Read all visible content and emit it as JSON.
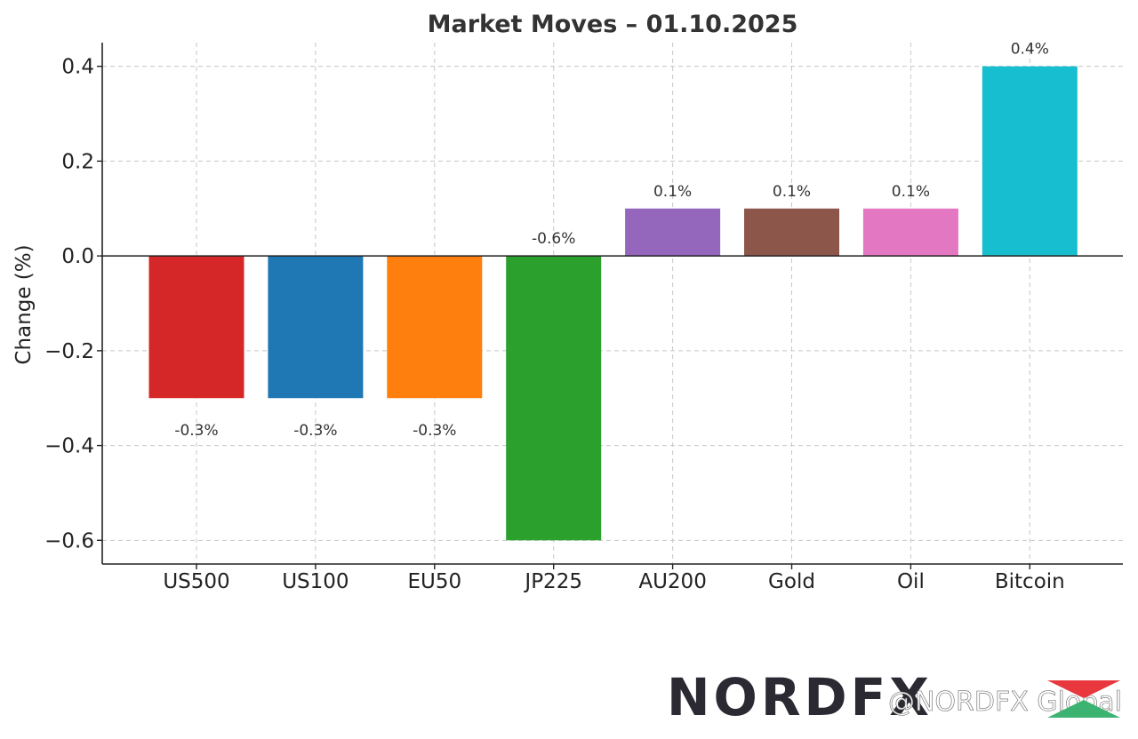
{
  "chart_data": {
    "type": "bar",
    "title": "Market Moves – 01.10.2025",
    "xlabel": "",
    "ylabel": "Change (%)",
    "categories": [
      "US500",
      "US100",
      "EU50",
      "JP225",
      "AU200",
      "Gold",
      "Oil",
      "Bitcoin"
    ],
    "values": [
      -0.3,
      -0.3,
      -0.3,
      -0.6,
      0.1,
      0.1,
      0.1,
      0.4
    ],
    "data_labels": [
      "-0.3%",
      "-0.3%",
      "-0.3%",
      "-0.6%",
      "0.1%",
      "0.1%",
      "0.1%",
      "0.4%"
    ],
    "colors": [
      "#d62728",
      "#1f77b4",
      "#ff7f0e",
      "#2ca02c",
      "#9467bd",
      "#8c564b",
      "#e377c2",
      "#17becf"
    ],
    "yticks": [
      -0.6,
      -0.4,
      -0.2,
      0.0,
      0.2,
      0.4
    ],
    "ytick_labels": [
      "−0.6",
      "−0.4",
      "−0.2",
      "0.0",
      "0.2",
      "0.4"
    ],
    "ylim": [
      -0.65,
      0.45
    ],
    "grid": true,
    "zero_line": true
  },
  "branding": {
    "logo_text": "NORDFX",
    "watermark": "@NORDFX Global",
    "logo_colors": [
      "#2b2932",
      "#e8383d",
      "#3cb371"
    ]
  }
}
